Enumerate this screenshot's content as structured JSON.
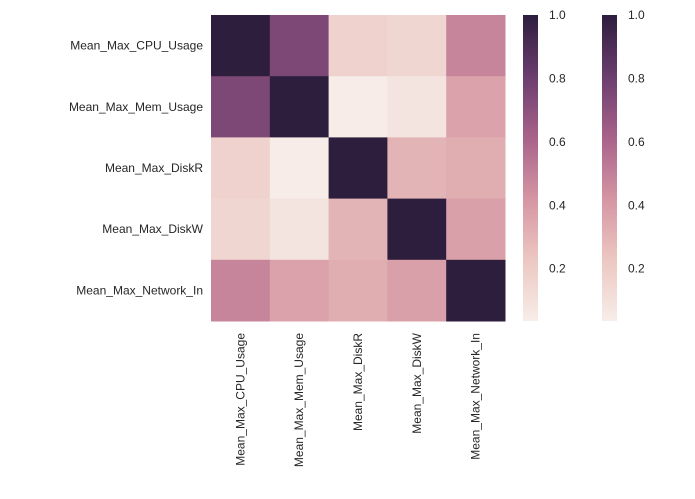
{
  "chart_data": {
    "type": "heatmap",
    "x_labels": [
      "Mean_Max_CPU_Usage",
      "Mean_Max_Mem_Usage",
      "Mean_Max_DiskR",
      "Mean_Max_DiskW",
      "Mean_Max_Network_In"
    ],
    "y_labels": [
      "Mean_Max_CPU_Usage",
      "Mean_Max_Mem_Usage",
      "Mean_Max_DiskR",
      "Mean_Max_DiskW",
      "Mean_Max_Network_In"
    ],
    "values": [
      [
        1.0,
        0.75,
        0.17,
        0.15,
        0.48
      ],
      [
        0.75,
        1.0,
        0.04,
        0.08,
        0.37
      ],
      [
        0.17,
        0.04,
        1.0,
        0.3,
        0.33
      ],
      [
        0.15,
        0.08,
        0.3,
        1.0,
        0.38
      ],
      [
        0.48,
        0.37,
        0.33,
        0.38,
        1.0
      ]
    ],
    "colorbar": {
      "count": 2,
      "range": [
        0.035,
        1.0
      ],
      "ticks": [
        "0.2",
        "0.4",
        "0.6",
        "0.8",
        "1.0"
      ],
      "colormap": [
        "#f7ede8",
        "#ecc7c1",
        "#d595a3",
        "#a8628a",
        "#6b3d6e",
        "#2d1e3e"
      ]
    },
    "title": "",
    "xlabel": "",
    "ylabel": "",
    "grid": false
  }
}
